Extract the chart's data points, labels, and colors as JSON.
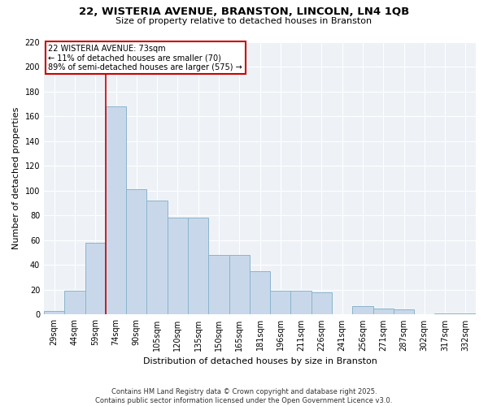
{
  "title": "22, WISTERIA AVENUE, BRANSTON, LINCOLN, LN4 1QB",
  "subtitle": "Size of property relative to detached houses in Branston",
  "xlabel": "Distribution of detached houses by size in Branston",
  "ylabel": "Number of detached properties",
  "categories": [
    "29sqm",
    "44sqm",
    "59sqm",
    "74sqm",
    "90sqm",
    "105sqm",
    "120sqm",
    "135sqm",
    "150sqm",
    "165sqm",
    "181sqm",
    "196sqm",
    "211sqm",
    "226sqm",
    "241sqm",
    "256sqm",
    "271sqm",
    "287sqm",
    "302sqm",
    "317sqm",
    "332sqm"
  ],
  "values": [
    3,
    19,
    58,
    168,
    101,
    92,
    78,
    78,
    48,
    48,
    35,
    19,
    19,
    18,
    0,
    7,
    5,
    4,
    0,
    1,
    1
  ],
  "bar_color": "#c8d8ea",
  "bar_edge_color": "#8ab4cc",
  "annotation_line1": "22 WISTERIA AVENUE: 73sqm",
  "annotation_line2": "← 11% of detached houses are smaller (70)",
  "annotation_line3": "89% of semi-detached houses are larger (575) →",
  "vline_color": "#cc0000",
  "annotation_box_edge": "#cc0000",
  "footer": "Contains HM Land Registry data © Crown copyright and database right 2025.\nContains public sector information licensed under the Open Government Licence v3.0.",
  "ylim": [
    0,
    220
  ],
  "bg_color": "#ffffff",
  "plot_bg_color": "#eef2f7",
  "title_fontsize": 9.5,
  "subtitle_fontsize": 8,
  "ylabel_fontsize": 8,
  "xlabel_fontsize": 8,
  "tick_fontsize": 7,
  "annot_fontsize": 7,
  "footer_fontsize": 6
}
